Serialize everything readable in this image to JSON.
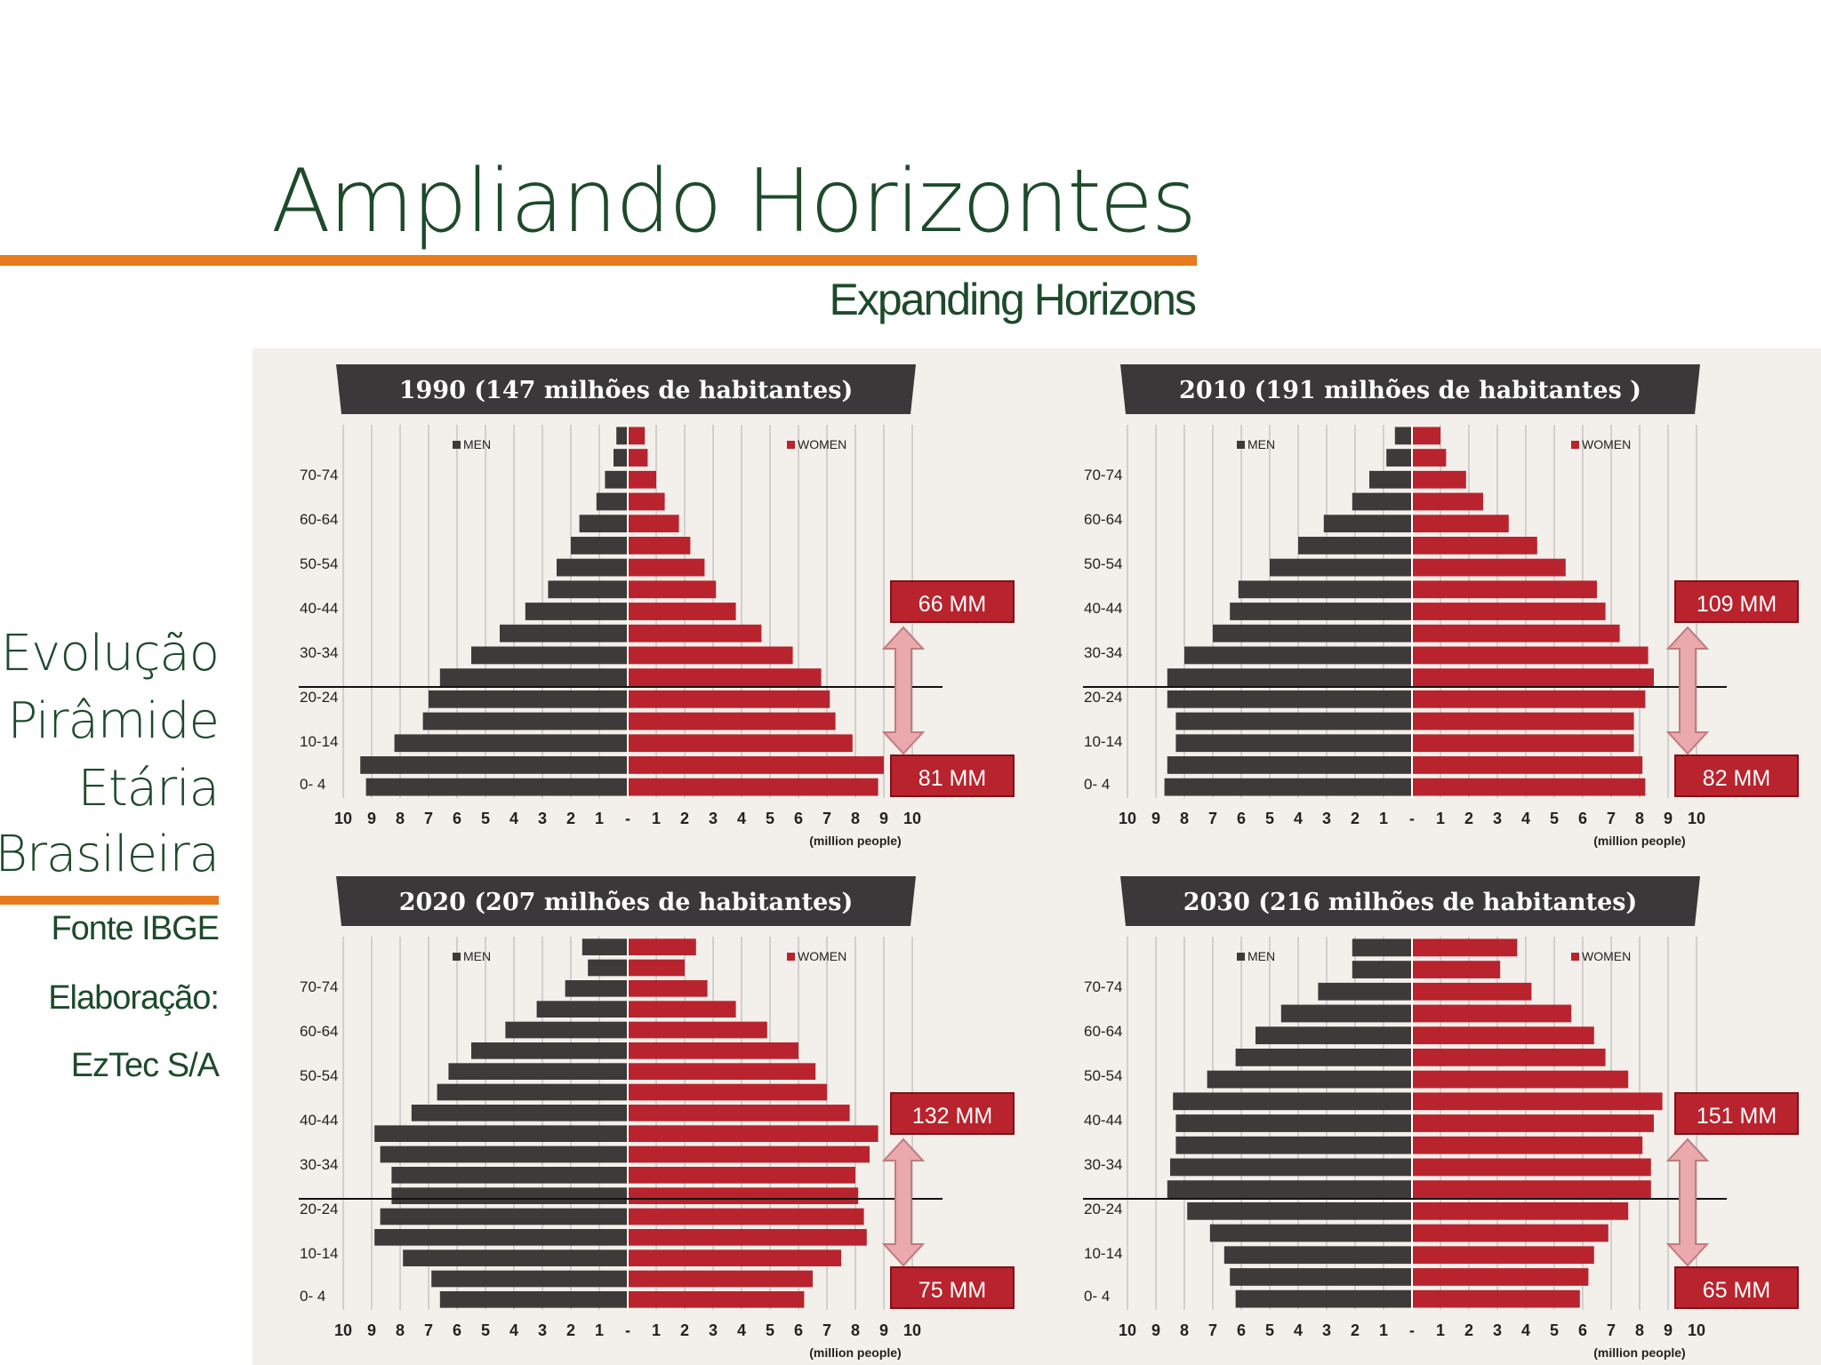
{
  "header": {
    "title": "Ampliando Horizontes",
    "subtitle": "Expanding Horizons"
  },
  "sidebar": {
    "lines": [
      "Evolução",
      "Pirâmide",
      "Etária",
      "Brasileira"
    ],
    "source": "Fonte IBGE",
    "credit_label": "Elaboração:",
    "credit": "EzTec S/A"
  },
  "colors": {
    "men": "#3d3a3a",
    "women": "#b9232d",
    "banner": "#3a3838",
    "badge": "#b9232d",
    "accent": "#e67a1c",
    "text_green": "#1d4a2a"
  },
  "chart_data": [
    {
      "type": "bar",
      "orientation": "horizontal",
      "layout": "population-pyramid",
      "title": "1990 (147 milhões de habitantes)",
      "xlabel": "(million people)",
      "xticks": [
        "10",
        "9",
        "8",
        "7",
        "6",
        "5",
        "4",
        "3",
        "2",
        "1",
        "-",
        "1",
        "2",
        "3",
        "4",
        "5",
        "6",
        "7",
        "8",
        "9",
        "10"
      ],
      "ytick_labels": [
        "70-74",
        "60-64",
        "50-54",
        "40-44",
        "30-34",
        "20-24",
        "10-14",
        "0- 4"
      ],
      "legend": [
        "MEN",
        "WOMEN"
      ],
      "series": [
        {
          "name": "MEN",
          "values": [
            9.2,
            9.4,
            8.2,
            7.2,
            7.0,
            6.6,
            5.5,
            4.5,
            3.6,
            2.8,
            2.5,
            2.0,
            1.7,
            1.1,
            0.8,
            0.5,
            0.4
          ]
        },
        {
          "name": "WOMEN",
          "values": [
            8.8,
            9.0,
            7.9,
            7.3,
            7.1,
            6.8,
            5.8,
            4.7,
            3.8,
            3.1,
            2.7,
            2.2,
            1.8,
            1.3,
            1.0,
            0.7,
            0.6
          ]
        }
      ],
      "annotations": {
        "upper": "66 MM",
        "lower": "81 MM"
      }
    },
    {
      "type": "bar",
      "orientation": "horizontal",
      "layout": "population-pyramid",
      "title": "2010  (191 milhões de habitantes )",
      "xlabel": "(million people)",
      "xticks": [
        "10",
        "9",
        "8",
        "7",
        "6",
        "5",
        "4",
        "3",
        "2",
        "1",
        "-",
        "1",
        "2",
        "3",
        "4",
        "5",
        "6",
        "7",
        "8",
        "9",
        "10"
      ],
      "ytick_labels": [
        "70-74",
        "60-64",
        "50-54",
        "40-44",
        "30-34",
        "20-24",
        "10-14",
        "0- 4"
      ],
      "legend": [
        "MEN",
        "WOMEN"
      ],
      "series": [
        {
          "name": "MEN",
          "values": [
            8.7,
            8.6,
            8.3,
            8.3,
            8.6,
            8.6,
            8.0,
            7.0,
            6.4,
            6.1,
            5.0,
            4.0,
            3.1,
            2.1,
            1.5,
            0.9,
            0.6
          ]
        },
        {
          "name": "WOMEN",
          "values": [
            8.2,
            8.1,
            7.8,
            7.8,
            8.2,
            8.5,
            8.3,
            7.3,
            6.8,
            6.5,
            5.4,
            4.4,
            3.4,
            2.5,
            1.9,
            1.2,
            1.0
          ]
        }
      ],
      "annotations": {
        "upper": "109 MM",
        "lower": "82 MM"
      }
    },
    {
      "type": "bar",
      "orientation": "horizontal",
      "layout": "population-pyramid",
      "title": "2020 (207 milhões de habitantes)",
      "xlabel": "(million people)",
      "xticks": [
        "10",
        "9",
        "8",
        "7",
        "6",
        "5",
        "4",
        "3",
        "2",
        "1",
        "-",
        "1",
        "2",
        "3",
        "4",
        "5",
        "6",
        "7",
        "8",
        "9",
        "10"
      ],
      "ytick_labels": [
        "70-74",
        "60-64",
        "50-54",
        "40-44",
        "30-34",
        "20-24",
        "10-14",
        "0- 4"
      ],
      "legend": [
        "MEN",
        "WOMEN"
      ],
      "series": [
        {
          "name": "MEN",
          "values": [
            6.6,
            6.9,
            7.9,
            8.9,
            8.7,
            8.3,
            8.3,
            8.7,
            8.9,
            7.6,
            6.7,
            6.3,
            5.5,
            4.3,
            3.2,
            2.2,
            1.4,
            1.6
          ]
        },
        {
          "name": "WOMEN",
          "values": [
            6.2,
            6.5,
            7.5,
            8.4,
            8.3,
            8.1,
            8.0,
            8.5,
            8.8,
            7.8,
            7.0,
            6.6,
            6.0,
            4.9,
            3.8,
            2.8,
            2.0,
            2.4
          ]
        }
      ],
      "annotations": {
        "upper": "132 MM",
        "lower": "75 MM"
      }
    },
    {
      "type": "bar",
      "orientation": "horizontal",
      "layout": "population-pyramid",
      "title": "2030 (216 milhões de habitantes)",
      "xlabel": "(million people)",
      "xticks": [
        "10",
        "9",
        "8",
        "7",
        "6",
        "5",
        "4",
        "3",
        "2",
        "1",
        "-",
        "1",
        "2",
        "3",
        "4",
        "5",
        "6",
        "7",
        "8",
        "9",
        "10"
      ],
      "ytick_labels": [
        "70-74",
        "60-64",
        "50-54",
        "40-44",
        "30-34",
        "20-24",
        "10-14",
        "0- 4"
      ],
      "legend": [
        "MEN",
        "WOMEN"
      ],
      "series": [
        {
          "name": "MEN",
          "values": [
            6.2,
            6.4,
            6.6,
            7.1,
            7.9,
            8.6,
            8.5,
            8.3,
            8.3,
            8.4,
            7.2,
            6.2,
            5.5,
            4.6,
            3.3,
            2.1,
            2.1
          ]
        },
        {
          "name": "WOMEN",
          "values": [
            5.9,
            6.2,
            6.4,
            6.9,
            7.6,
            8.4,
            8.4,
            8.1,
            8.5,
            8.8,
            7.6,
            6.8,
            6.4,
            5.6,
            4.2,
            3.1,
            3.7
          ]
        }
      ],
      "annotations": {
        "upper": "151 MM",
        "lower": "65 MM"
      }
    }
  ]
}
